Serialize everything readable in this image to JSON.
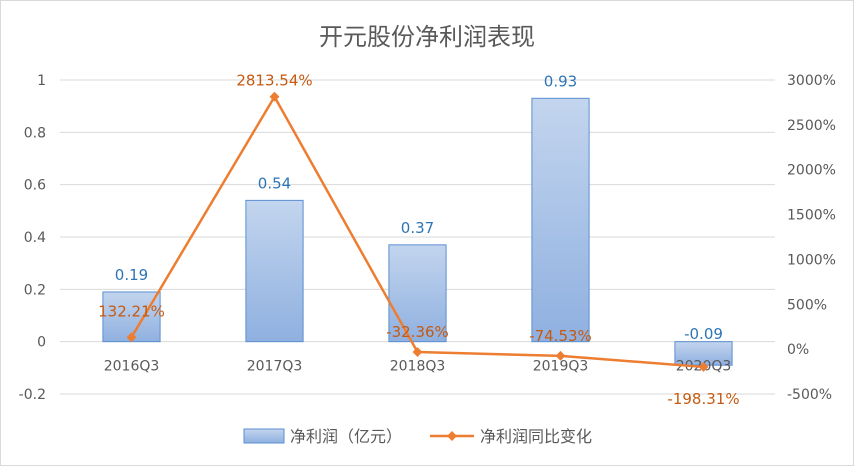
{
  "chart_data": {
    "type": "bar",
    "title": "开元股份净利润表现",
    "categories": [
      "2016Q3",
      "2017Q3",
      "2018Q3",
      "2019Q3",
      "2020Q3"
    ],
    "series": [
      {
        "name": "净利润（亿元）",
        "type": "bar",
        "axis": "left",
        "values": [
          0.19,
          0.54,
          0.37,
          0.93,
          -0.09
        ],
        "labels": [
          "0.19",
          "0.54",
          "0.37",
          "0.93",
          "-0.09"
        ]
      },
      {
        "name": "净利润同比变化",
        "type": "line",
        "axis": "right",
        "values": [
          132.21,
          2813.54,
          -32.36,
          -74.53,
          -198.31
        ],
        "labels": [
          "132.21%",
          "2813.54%",
          "-32.36%",
          "-74.53%",
          "-198.31%"
        ]
      }
    ],
    "y_left": {
      "range": [
        -0.2,
        1
      ],
      "ticks": [
        1,
        0.8,
        0.6,
        0.4,
        0.2,
        0,
        -0.2
      ],
      "tick_labels": [
        "1",
        "0.8",
        "0.6",
        "0.4",
        "0.2",
        "0",
        "-0.2"
      ]
    },
    "y_right": {
      "range": [
        -500,
        3000
      ],
      "ticks": [
        3000,
        2500,
        2000,
        1500,
        1000,
        500,
        0,
        -500
      ],
      "tick_labels": [
        "3000%",
        "2500%",
        "2000%",
        "1500%",
        "1000%",
        "500%",
        "0%",
        "-500%"
      ]
    },
    "grid": true,
    "legend_position": "bottom",
    "colors": {
      "bar_top": "#c3d5ee",
      "bar_bottom": "#8fb0e0",
      "bar_border": "#5b8fd0",
      "bar_label": "#2e75b6",
      "line": "#ed7d31",
      "line_label": "#c55a11",
      "grid": "#d9d9d9",
      "axis_text": "#595959",
      "title": "#595959"
    }
  }
}
